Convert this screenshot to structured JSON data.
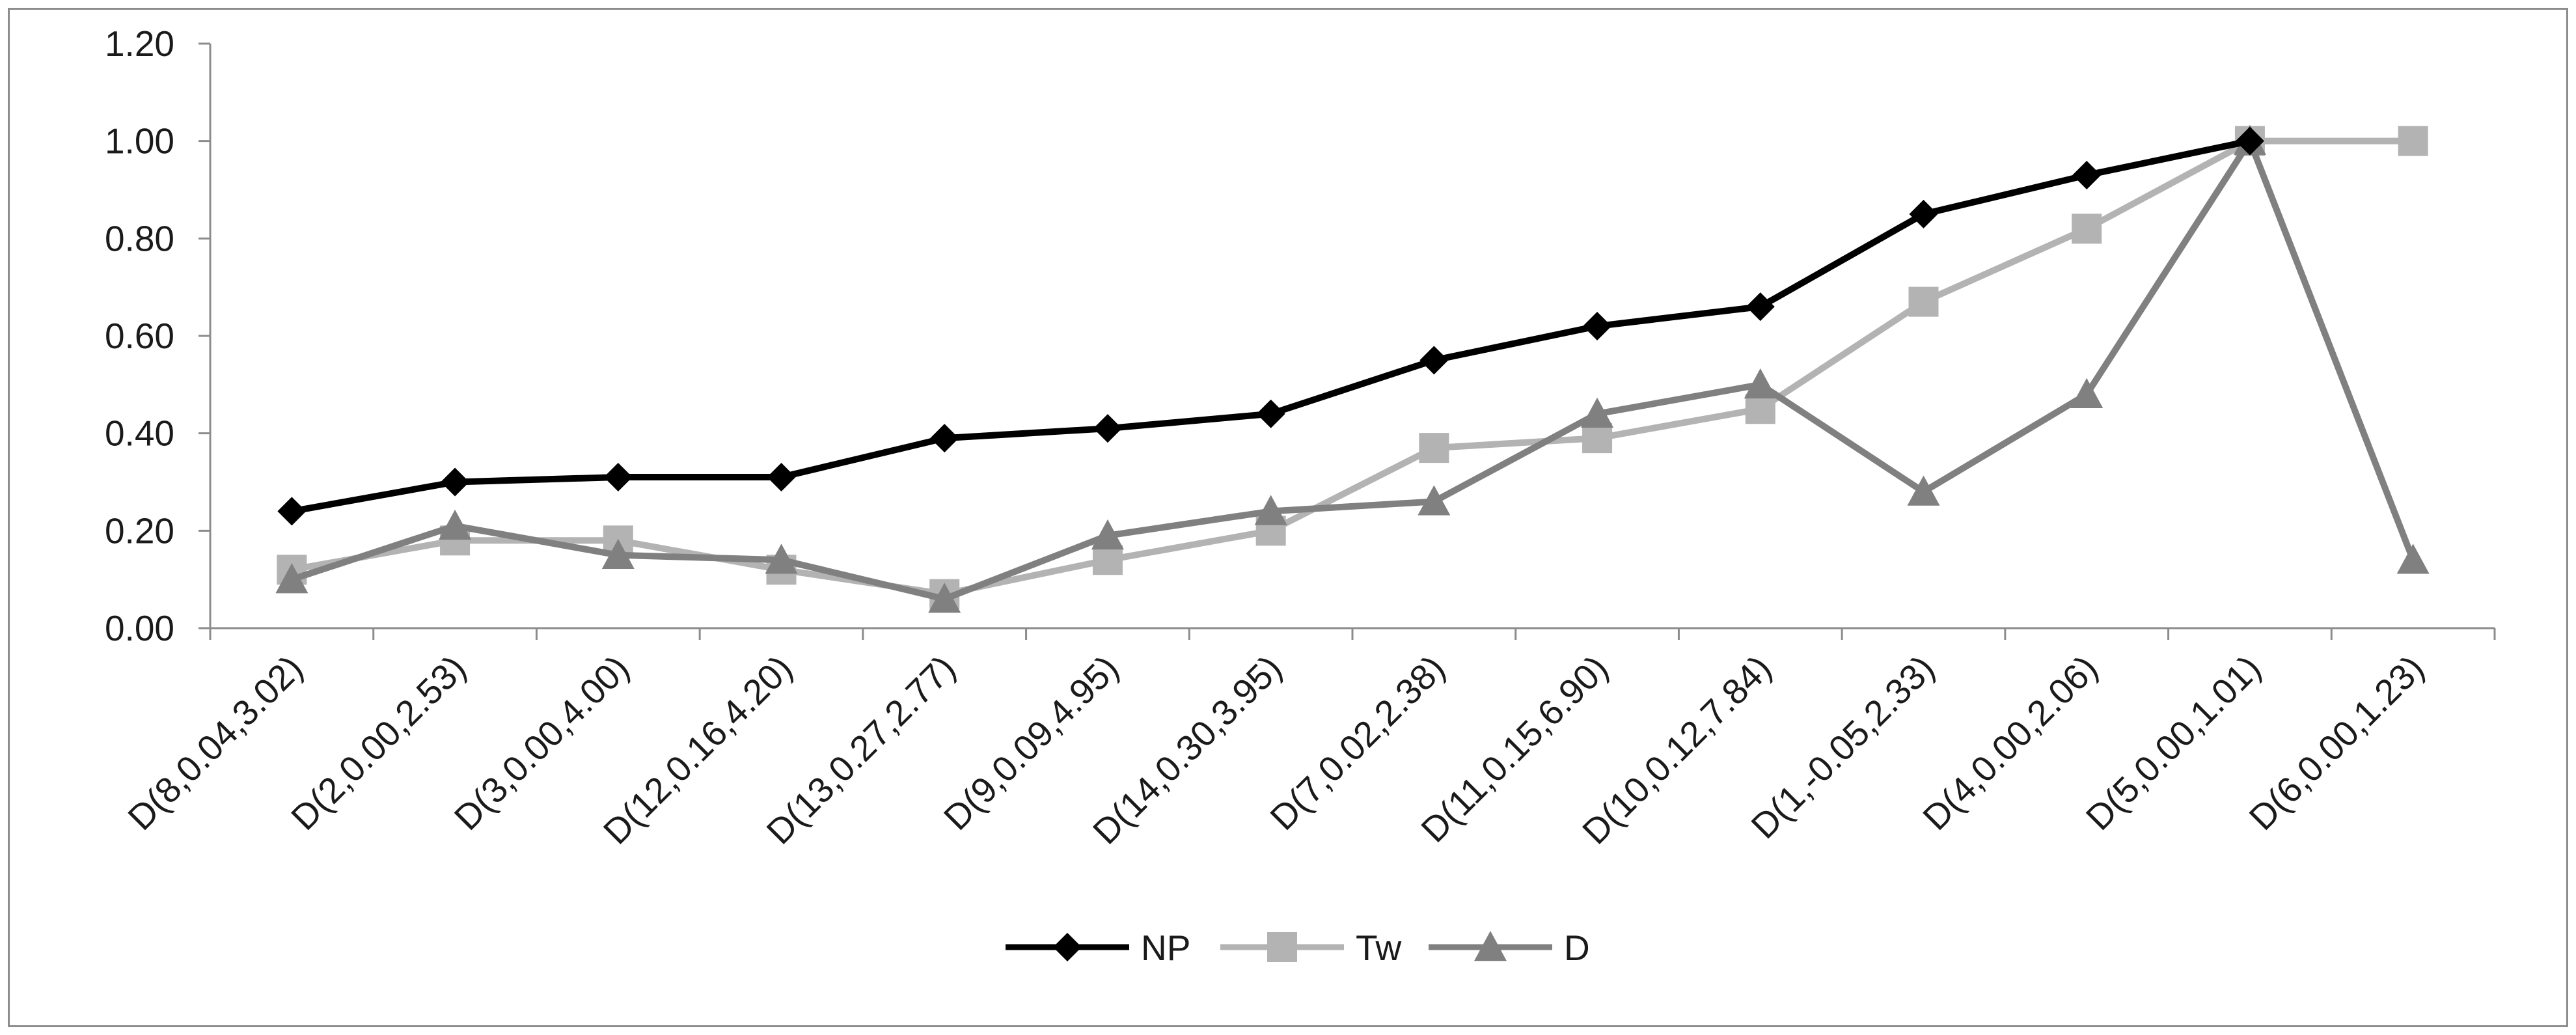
{
  "chart_data": {
    "type": "line",
    "title": "",
    "xlabel": "",
    "ylabel": "",
    "categories": [
      "D(8,0.04,3.02)",
      "D(2,0.00,2.53)",
      "D(3,0.00,4.00)",
      "D(12,0.16,4.20)",
      "D(13,0.27,2.77)",
      "D(9,0.09,4.95)",
      "D(14,0.30,3.95)",
      "D(7,0.02,2.38)",
      "D(11,0.15,6.90)",
      "D(10,0.12,7.84)",
      "D(1,-0.05,2.33)",
      "D(4,0.00,2.06)",
      "D(5,0.00,1.01)",
      "D(6,0.00,1.23)"
    ],
    "ylim": [
      0,
      1.2
    ],
    "yticks": [
      "0.00",
      "0.20",
      "0.40",
      "0.60",
      "0.80",
      "1.00",
      "1.20"
    ],
    "grid": false,
    "legend_position": "bottom",
    "series": [
      {
        "name": "NP",
        "marker": "diamond",
        "color": "#000000",
        "values": [
          0.24,
          0.3,
          0.31,
          0.31,
          0.39,
          0.41,
          0.44,
          0.55,
          0.62,
          0.66,
          0.85,
          0.93,
          1.0,
          null
        ]
      },
      {
        "name": "Tw",
        "marker": "square",
        "color": "#b3b3b3",
        "values": [
          0.12,
          0.18,
          0.18,
          0.12,
          0.07,
          0.14,
          0.2,
          0.37,
          0.39,
          0.45,
          0.67,
          0.82,
          1.0,
          1.0
        ]
      },
      {
        "name": "D",
        "marker": "triangle",
        "color": "#808080",
        "values": [
          0.1,
          0.21,
          0.15,
          0.14,
          0.06,
          0.19,
          0.24,
          0.26,
          0.44,
          0.5,
          0.28,
          0.48,
          1.0,
          0.14
        ]
      }
    ]
  }
}
